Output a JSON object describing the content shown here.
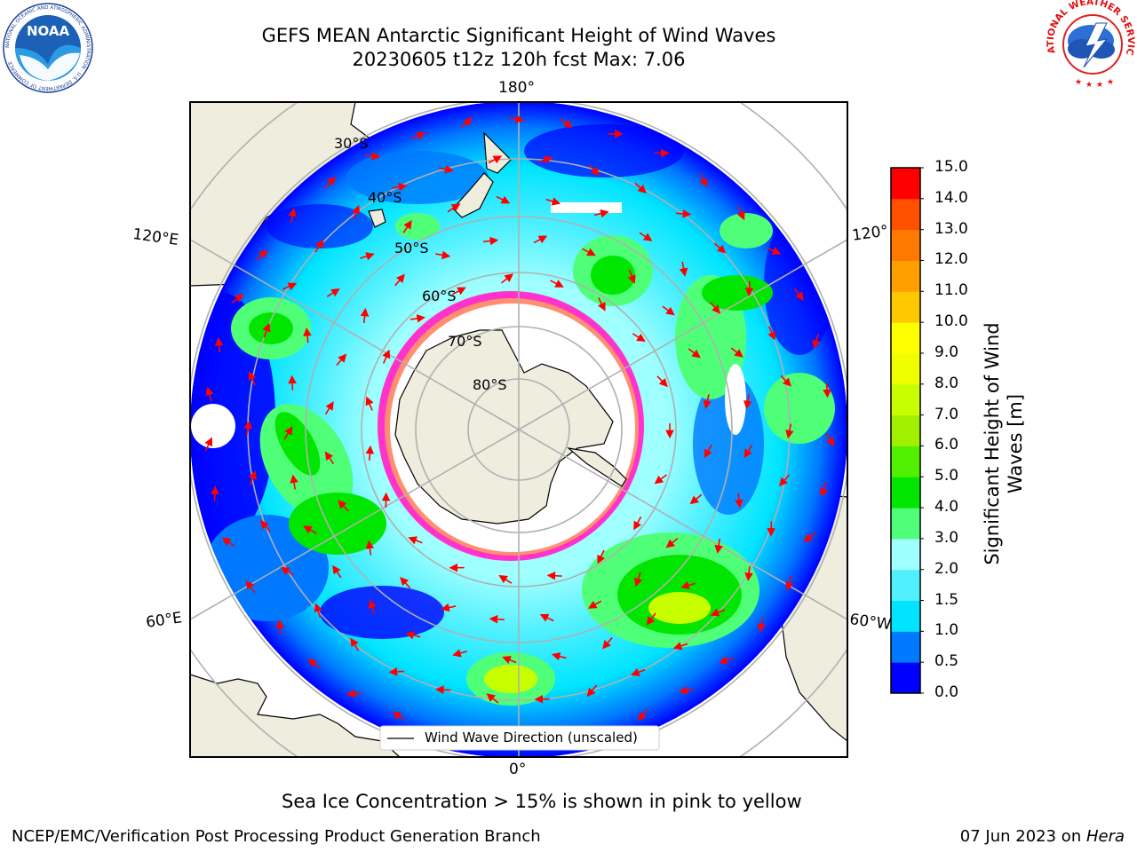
{
  "title": {
    "line1": "GEFS MEAN Antarctic Significant Height of Wind Waves",
    "line2": "20230605 t12z 120h fcst   Max: 7.06"
  },
  "map": {
    "projection": "south polar stereographic",
    "lon_labels": {
      "top": "180°",
      "bottom": "0°",
      "upper_left": "120°E",
      "upper_right": "120°",
      "lower_left": "60°E",
      "lower_right": "60°W"
    },
    "lat_labels": [
      "30°S",
      "40°S",
      "50°S",
      "60°S",
      "70°S",
      "80°S"
    ],
    "legend": "Wind Wave Direction (unscaled)",
    "arrow_color": "#ff0000",
    "sea_ice_colors": [
      "#ff33cc",
      "#ffff00"
    ],
    "land_color": "#efedde",
    "missing_color": "#ffffff"
  },
  "colorbar": {
    "label": "Significant Height of Wind Waves [m]",
    "ticks": [
      "0.0",
      "0.5",
      "1.0",
      "1.5",
      "2.0",
      "3.0",
      "4.0",
      "5.0",
      "6.0",
      "7.0",
      "8.0",
      "9.0",
      "10.0",
      "11.0",
      "12.0",
      "13.0",
      "14.0",
      "15.0"
    ],
    "colors": [
      "#0000ff",
      "#0078ff",
      "#00e4ff",
      "#50f0ff",
      "#a0ffff",
      "#50ff78",
      "#00e600",
      "#50f000",
      "#a0f000",
      "#c8ff00",
      "#f0ff00",
      "#ffff00",
      "#ffc800",
      "#ffa000",
      "#ff7800",
      "#ff5000",
      "#ff0000"
    ]
  },
  "note": "Sea Ice Concentration > 15% is shown in pink to yellow",
  "footer": {
    "left": "NCEP/EMC/Verification Post Processing Product Generation Branch",
    "right_prefix": "07 Jun 2023 on ",
    "right_italic": "Hera"
  },
  "logos": {
    "left": {
      "name": "NOAA",
      "ring_text": "NATIONAL OCEANIC AND ATMOSPHERIC ADMINISTRATION · U.S. DEPARTMENT OF COMMERCE"
    },
    "right": {
      "name": "NATIONAL WEATHER SERVICE"
    }
  }
}
